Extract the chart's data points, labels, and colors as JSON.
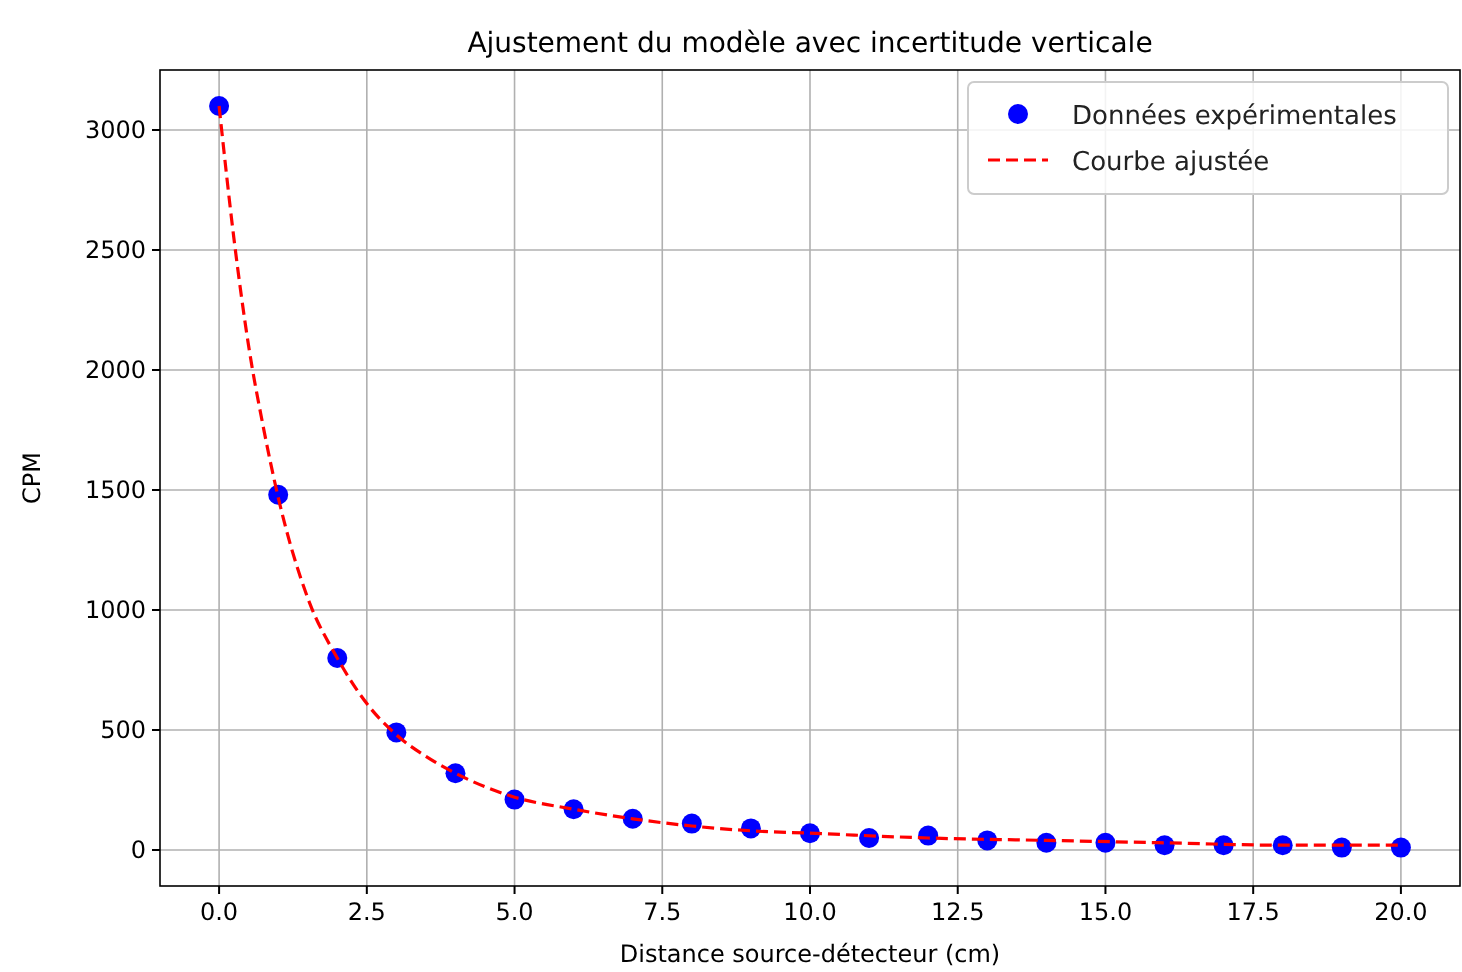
{
  "chart_data": {
    "type": "scatter",
    "title": "Ajustement du modèle avec incertitude verticale",
    "xlabel": "Distance source-détecteur (cm)",
    "ylabel": "CPM",
    "xlim": [
      -1,
      21
    ],
    "ylim": [
      -150,
      3250
    ],
    "xticks": [
      {
        "value": 0,
        "label": "0.0"
      },
      {
        "value": 2.5,
        "label": "2.5"
      },
      {
        "value": 5,
        "label": "5.0"
      },
      {
        "value": 7.5,
        "label": "7.5"
      },
      {
        "value": 10,
        "label": "10.0"
      },
      {
        "value": 12.5,
        "label": "12.5"
      },
      {
        "value": 15,
        "label": "15.0"
      },
      {
        "value": 17.5,
        "label": "17.5"
      },
      {
        "value": 20,
        "label": "20.0"
      }
    ],
    "yticks": [
      0,
      500,
      1000,
      1500,
      2000,
      2500,
      3000
    ],
    "grid": true,
    "legend": "top right",
    "series": [
      {
        "name": "Données expérimentales",
        "color": "#0000ff",
        "marker": "circle",
        "x": [
          0,
          1,
          2,
          3,
          4,
          5,
          6,
          7,
          8,
          9,
          10,
          11,
          12,
          13,
          14,
          15,
          16,
          17,
          18,
          19,
          20
        ],
        "values": [
          3100,
          1480,
          800,
          490,
          320,
          210,
          170,
          130,
          110,
          90,
          70,
          50,
          60,
          40,
          30,
          30,
          20,
          20,
          20,
          10,
          10
        ]
      },
      {
        "name": "Courbe ajustée",
        "type": "line",
        "color": "#ff0000",
        "line_style": "dashed",
        "marker": "none",
        "x": [
          0,
          0.25,
          0.5,
          0.75,
          1,
          1.5,
          2,
          2.5,
          3,
          3.5,
          4,
          5,
          6,
          7,
          8,
          9,
          10,
          12,
          14,
          16,
          18,
          20
        ],
        "values": [
          3100,
          2550,
          2100,
          1760,
          1470,
          1050,
          800,
          610,
          480,
          390,
          320,
          220,
          170,
          130,
          100,
          80,
          70,
          50,
          40,
          30,
          20,
          20
        ]
      }
    ]
  }
}
